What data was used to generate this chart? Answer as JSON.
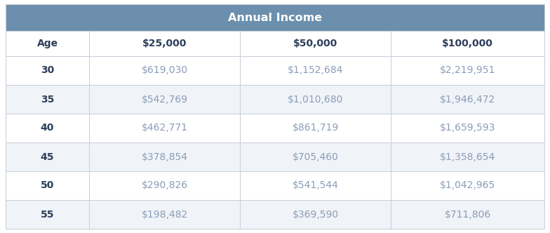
{
  "title": "Annual Income",
  "title_bg_color": "#6b8fad",
  "title_text_color": "#ffffff",
  "header_row": [
    "Age",
    "$25,000",
    "$50,000",
    "$100,000"
  ],
  "rows": [
    [
      "30",
      "$619,030",
      "$1,152,684",
      "$2,219,951"
    ],
    [
      "35",
      "$542,769",
      "$1,010,680",
      "$1,946,472"
    ],
    [
      "40",
      "$462,771",
      "$861,719",
      "$1,659,593"
    ],
    [
      "45",
      "$378,854",
      "$705,460",
      "$1,358,654"
    ],
    [
      "50",
      "$290,826",
      "$541,544",
      "$1,042,965"
    ],
    [
      "55",
      "$198,482",
      "$369,590",
      "$711,806"
    ]
  ],
  "header_text_color": "#2e3f5c",
  "age_text_color": "#2e3f5c",
  "data_col1_color": "#8b9db8",
  "data_col2_color": "#8b9db8",
  "data_col3_color": "#8b9db8",
  "row_bg_even": "#ffffff",
  "row_bg_odd": "#f0f3f7",
  "border_color": "#c8cdd8",
  "title_fontsize": 11.5,
  "header_fontsize": 10,
  "data_fontsize": 10
}
